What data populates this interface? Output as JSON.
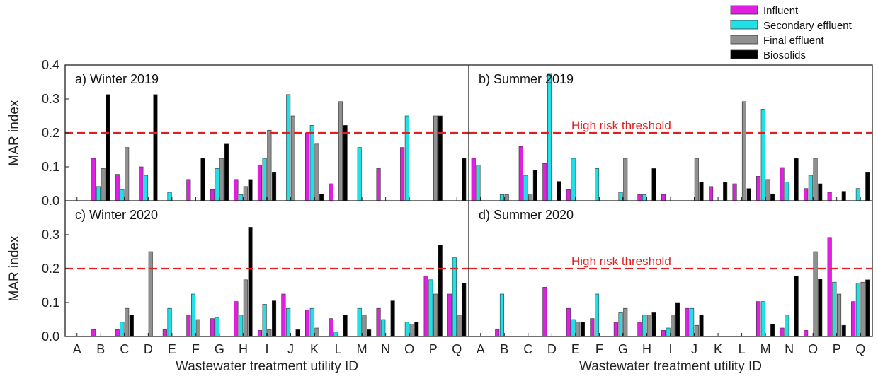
{
  "chart_data": {
    "type": "bar",
    "ylabel": "MAR index",
    "xlabel": "Wastewater treatment utility ID",
    "ylim": [
      0,
      0.4
    ],
    "y_ticks": [
      "0.0",
      "0.1",
      "0.2",
      "0.3",
      "0.4"
    ],
    "categories": [
      "A",
      "B",
      "C",
      "D",
      "E",
      "F",
      "G",
      "H",
      "I",
      "J",
      "K",
      "L",
      "M",
      "N",
      "O",
      "P",
      "Q"
    ],
    "legend": {
      "placement": "top-right",
      "entries": [
        {
          "name": "Influent",
          "color": "#e020e0"
        },
        {
          "name": "Secondary effluent",
          "color": "#20e0e8"
        },
        {
          "name": "Final effluent",
          "color": "#909090"
        },
        {
          "name": "Biosolids",
          "color": "#000000"
        }
      ]
    },
    "threshold": {
      "value": 0.2,
      "label": "High risk threshold",
      "color": "#e02020"
    },
    "panels": [
      {
        "title": "a) Winter 2019",
        "series": [
          {
            "name": "Influent",
            "values": [
              0,
              0.125,
              0.078,
              0.1,
              0,
              0.063,
              0.033,
              0.063,
              0.105,
              0,
              0.2,
              0.05,
              0,
              0.095,
              0.157,
              0,
              0
            ]
          },
          {
            "name": "Secondary effluent",
            "values": [
              0,
              0.042,
              0.033,
              0.075,
              0.025,
              0,
              0.095,
              0.018,
              0.125,
              0.313,
              0.222,
              0,
              0.157,
              0,
              0.25,
              0,
              0
            ]
          },
          {
            "name": "Final effluent",
            "values": [
              0,
              0.095,
              0.157,
              0,
              0,
              0,
              0.125,
              0.042,
              0.208,
              0.25,
              0.167,
              0.292,
              0,
              0,
              0,
              0.25,
              0
            ]
          },
          {
            "name": "Biosolids",
            "values": [
              0,
              0.313,
              0,
              0.313,
              0,
              0.125,
              0.167,
              0.063,
              0.083,
              0,
              0.02,
              0.222,
              0,
              0,
              0,
              0.25,
              0.125
            ]
          }
        ]
      },
      {
        "title": "b) Summer 2019",
        "series": [
          {
            "name": "Influent",
            "values": [
              0.125,
              0,
              0.16,
              0.11,
              0.033,
              0,
              0,
              0.018,
              0.018,
              0,
              0.042,
              0.05,
              0.072,
              0.098,
              0.036,
              0.025,
              0
            ]
          },
          {
            "name": "Secondary effluent",
            "values": [
              0.105,
              0.018,
              0.075,
              0.375,
              0.125,
              0.095,
              0.025,
              0.018,
              0,
              0,
              0,
              0,
              0.27,
              0.055,
              0.075,
              0,
              0.036
            ]
          },
          {
            "name": "Final effluent",
            "values": [
              0,
              0.018,
              0.02,
              0,
              0,
              0,
              0.125,
              0,
              0,
              0.125,
              0,
              0.292,
              0.063,
              0,
              0.125,
              0,
              0
            ]
          },
          {
            "name": "Biosolids",
            "values": [
              0,
              0,
              0.09,
              0.057,
              0,
              0,
              0,
              0.095,
              0,
              0.055,
              0.055,
              0.036,
              0.02,
              0.125,
              0.05,
              0.028,
              0.083
            ]
          }
        ]
      },
      {
        "title": "c) Winter 2020",
        "series": [
          {
            "name": "Influent",
            "values": [
              0,
              0.02,
              0.02,
              0,
              0.02,
              0.063,
              0.053,
              0.103,
              0.018,
              0.125,
              0.078,
              0.053,
              0,
              0.083,
              0,
              0.178,
              0.125
            ]
          },
          {
            "name": "Secondary effluent",
            "values": [
              0,
              0,
              0.042,
              0,
              0.083,
              0.125,
              0.055,
              0.063,
              0.095,
              0.083,
              0.083,
              0.013,
              0.083,
              0.05,
              0.042,
              0.167,
              0.232
            ]
          },
          {
            "name": "Final effluent",
            "values": [
              0,
              0,
              0.083,
              0.25,
              0,
              0.05,
              0,
              0.167,
              0.02,
              0,
              0.025,
              0,
              0.063,
              0,
              0.036,
              0.125,
              0.063
            ]
          },
          {
            "name": "Biosolids",
            "values": [
              0,
              0,
              0.063,
              0,
              0,
              0,
              0,
              0.322,
              0.105,
              0.02,
              0,
              0.063,
              0.02,
              0.105,
              0.042,
              0.27,
              0.157
            ]
          }
        ]
      },
      {
        "title": "d) Summer 2020",
        "series": [
          {
            "name": "Influent",
            "values": [
              0,
              0.02,
              0,
              0.145,
              0.083,
              0.053,
              0.042,
              0.042,
              0.018,
              0.083,
              0,
              0,
              0.103,
              0.025,
              0.018,
              0.292,
              0.103
            ]
          },
          {
            "name": "Secondary effluent",
            "values": [
              0,
              0.125,
              0,
              0,
              0.05,
              0.125,
              0.07,
              0.063,
              0.025,
              0.083,
              0,
              0,
              0.103,
              0.063,
              0,
              0.16,
              0.157
            ]
          },
          {
            "name": "Final effluent",
            "values": [
              0,
              0,
              0,
              0,
              0.042,
              0,
              0.083,
              0.063,
              0.063,
              0.033,
              0,
              0,
              0,
              0,
              0.25,
              0.125,
              0.16
            ]
          },
          {
            "name": "Biosolids",
            "values": [
              0,
              0,
              0,
              0,
              0.042,
              0,
              0,
              0.07,
              0.1,
              0.063,
              0,
              0,
              0.036,
              0.178,
              0.17,
              0.033,
              0.167
            ]
          }
        ]
      }
    ]
  }
}
